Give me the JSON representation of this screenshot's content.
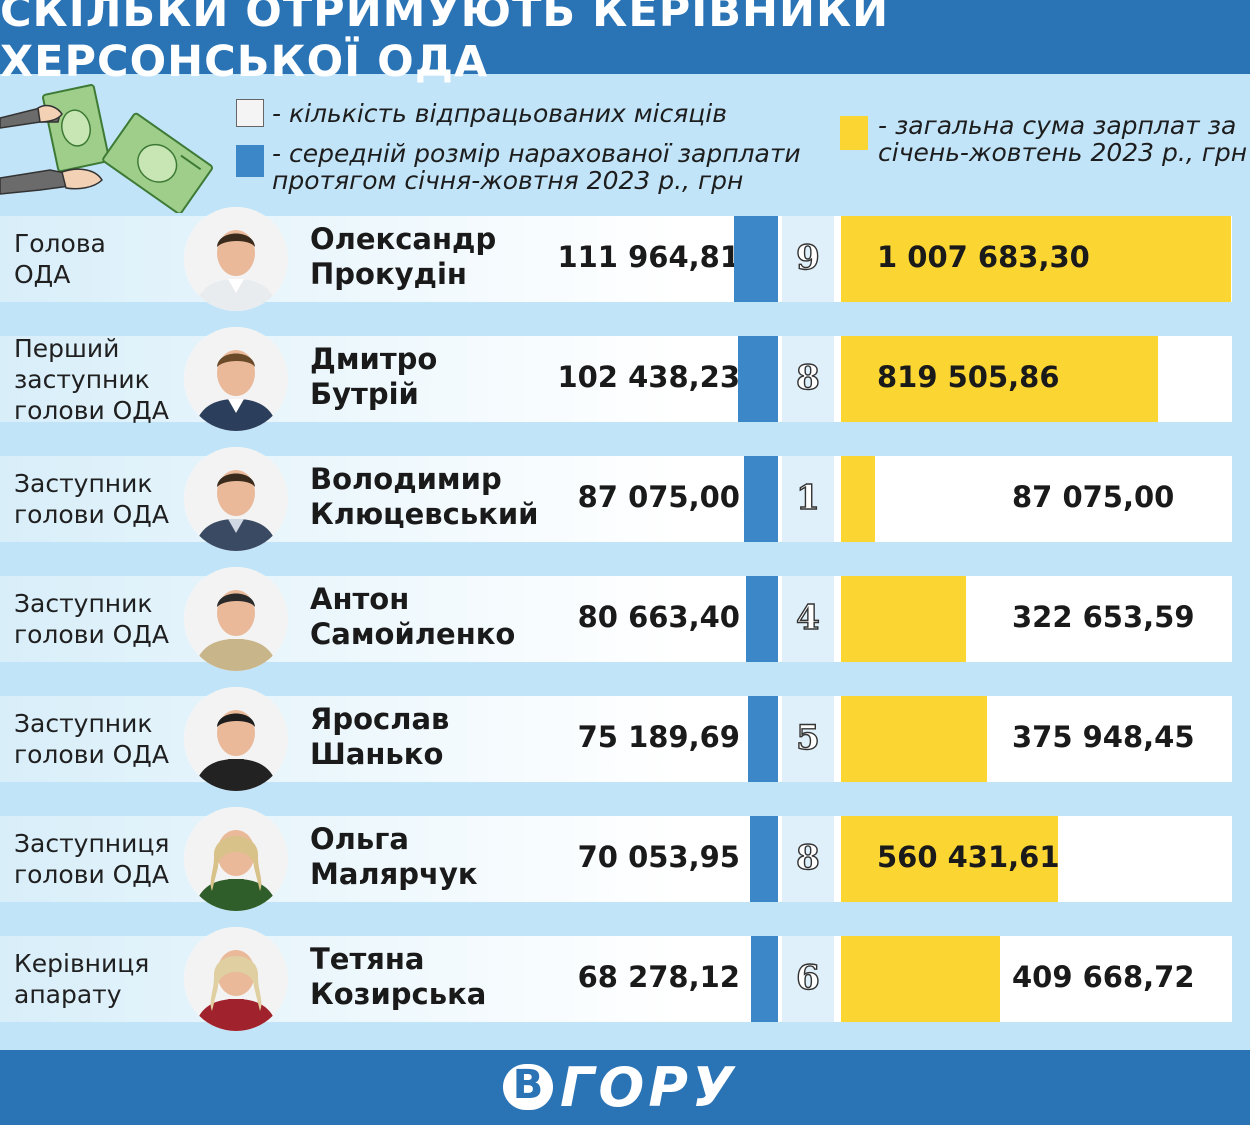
{
  "header": {
    "title": "СКІЛЬКИ ОТРИМУЮТЬ КЕРІВНИКИ ХЕРСОНСЬКОЇ ОДА"
  },
  "legend": {
    "months": "- кількість відпрацьованих місяців",
    "avg_line1": "- середній розмір нарахованої зарплати",
    "avg_line2": "протягом січня-жовтня 2023 р., грн",
    "total_line1": "- загальна сума зарплат за",
    "total_line2": "січень-жовтень 2023 р., грн"
  },
  "colors": {
    "blue": "#3b87c8",
    "yellow": "#fbd633",
    "header": "#2a74b6",
    "background": "#c2e4f8"
  },
  "icons": {
    "illustration": "hands-with-money-icon",
    "photo": "person-photo"
  },
  "chart_data": {
    "type": "table",
    "columns": [
      "role",
      "name",
      "avg_salary",
      "months",
      "total"
    ],
    "series": [
      {
        "name": "середній розмір нарахованої зарплати протягом січня-жовтня 2023 р., грн"
      },
      {
        "name": "кількість відпрацьованих місяців"
      },
      {
        "name": "загальна сума зарплат за січень-жовтень 2023 р., грн"
      }
    ],
    "rows": [
      {
        "role1": "Голова",
        "role2": "ОДА",
        "role3": "",
        "first": "Олександр",
        "last": "Прокудін",
        "avg": 111964.81,
        "avg_text": "111 964,81",
        "months": "9",
        "total": 1007683.3,
        "total_text": "1 007 683,30"
      },
      {
        "role1": "Перший",
        "role2": "заступник",
        "role3": "голови ОДА",
        "first": "Дмитро",
        "last": "Бутрій",
        "avg": 102438.23,
        "avg_text": "102 438,23",
        "months": "8",
        "total": 819505.86,
        "total_text": "819 505,86"
      },
      {
        "role1": "Заступник",
        "role2": "голови ОДА",
        "role3": "",
        "first": "Володимир",
        "last": "Клюцевський",
        "avg": 87075.0,
        "avg_text": "87 075,00",
        "months": "1",
        "total": 87075.0,
        "total_text": "87 075,00"
      },
      {
        "role1": "Заступник",
        "role2": "голови ОДА",
        "role3": "",
        "first": "Антон",
        "last": "Самойленко",
        "avg": 80663.4,
        "avg_text": "80 663,40",
        "months": "4",
        "total": 322653.59,
        "total_text": "322 653,59"
      },
      {
        "role1": "Заступник",
        "role2": "голови ОДА",
        "role3": "",
        "first": "Ярослав",
        "last": "Шанько",
        "avg": 75189.69,
        "avg_text": "75 189,69",
        "months": "5",
        "total": 375948.45,
        "total_text": "375 948,45"
      },
      {
        "role1": "Заступниця",
        "role2": "голови ОДА",
        "role3": "",
        "first": "Ольга",
        "last": "Малярчук",
        "avg": 70053.95,
        "avg_text": "70 053,95",
        "months": "8",
        "total": 560431.61,
        "total_text": "560 431,61"
      },
      {
        "role1": "Керівниця",
        "role2": "апарату",
        "role3": "",
        "first": "Тетяна",
        "last": "Козирська",
        "avg": 68278.12,
        "avg_text": "68 278,12",
        "months": "6",
        "total": 409668.72,
        "total_text": "409 668,72"
      }
    ]
  },
  "footer": {
    "logo_letter": "В",
    "logo_text": "ГОРУ"
  }
}
